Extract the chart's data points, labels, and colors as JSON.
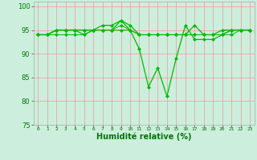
{
  "xlabel": "Humidité relative (%)",
  "hours": [
    0,
    1,
    2,
    3,
    4,
    5,
    6,
    7,
    8,
    9,
    10,
    11,
    12,
    13,
    14,
    15,
    16,
    17,
    18,
    19,
    20,
    21,
    22,
    23
  ],
  "line1": [
    94,
    94,
    95,
    95,
    95,
    94,
    95,
    95,
    95,
    97,
    95,
    91,
    83,
    87,
    81,
    89,
    96,
    93,
    93,
    93,
    94,
    95,
    95,
    95
  ],
  "line2": [
    94,
    94,
    95,
    95,
    95,
    95,
    95,
    96,
    96,
    97,
    96,
    94,
    94,
    94,
    94,
    94,
    94,
    96,
    94,
    94,
    95,
    95,
    95,
    95
  ],
  "line3": [
    94,
    94,
    94,
    94,
    94,
    94,
    95,
    95,
    95,
    96,
    95,
    94,
    94,
    94,
    94,
    94,
    94,
    94,
    94,
    94,
    94,
    95,
    95,
    95
  ],
  "line4": [
    94,
    94,
    95,
    95,
    95,
    95,
    95,
    95,
    95,
    95,
    95,
    94,
    94,
    94,
    94,
    94,
    94,
    94,
    94,
    94,
    94,
    94,
    95,
    95
  ],
  "ylim": [
    75,
    101
  ],
  "yticks": [
    75,
    80,
    85,
    90,
    95,
    100
  ],
  "line_color": "#00bb00",
  "bg_color": "#cceedd",
  "grid_color": "#ee9999",
  "tick_label_color": "#007700",
  "xlabel_color": "#007700",
  "spine_color": "#aaaaaa"
}
